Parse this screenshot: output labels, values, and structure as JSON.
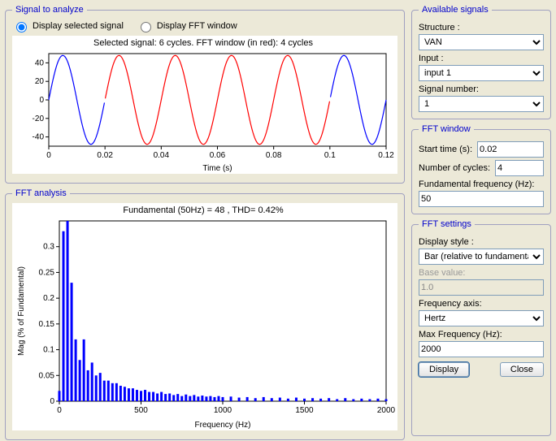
{
  "signal_panel": {
    "legend": "Signal to analyze",
    "radio_selected_label": "Display selected signal",
    "radio_fft_label": "Display FFT window",
    "radio_value": "selected",
    "chart": {
      "type": "line",
      "title": "Selected signal: 6 cycles. FFT window (in red): 4 cycles",
      "xlabel": "Time (s)",
      "xlim": [
        0,
        0.12
      ],
      "xticks": [
        0,
        0.02,
        0.04,
        0.06,
        0.08,
        0.1,
        0.12
      ],
      "ylim": [
        -50,
        50
      ],
      "yticks": [
        -40,
        -20,
        0,
        20,
        40
      ],
      "amplitude": 48,
      "frequency": 50,
      "fft_window": [
        0.02,
        0.1
      ],
      "line_color": "#0000ff",
      "fft_color": "#ff0000",
      "background_color": "#ffffff",
      "axis_color": "#000000",
      "tick_fontsize": 10,
      "label_fontsize": 10,
      "title_fontsize": 11
    }
  },
  "fft_panel": {
    "legend": "FFT analysis",
    "chart": {
      "type": "bar",
      "title": "Fundamental (50Hz) = 48 , THD= 0.42%",
      "xlabel": "Frequency (Hz)",
      "ylabel": "Mag (% of Fundamental)",
      "xlim": [
        0,
        2000
      ],
      "xticks": [
        0,
        500,
        1000,
        1500,
        2000
      ],
      "ylim": [
        0,
        0.35
      ],
      "yticks": [
        0,
        0.05,
        0.1,
        0.15,
        0.2,
        0.25,
        0.3
      ],
      "bar_color": "#0000ff",
      "background_color": "#ffffff",
      "axis_color": "#000000",
      "tick_fontsize": 10,
      "label_fontsize": 10,
      "title_fontsize": 11,
      "bars": [
        {
          "f": 0,
          "mag": 0.02
        },
        {
          "f": 25,
          "mag": 0.33
        },
        {
          "f": 50,
          "mag": 0.35
        },
        {
          "f": 75,
          "mag": 0.23
        },
        {
          "f": 100,
          "mag": 0.12
        },
        {
          "f": 125,
          "mag": 0.08
        },
        {
          "f": 150,
          "mag": 0.12
        },
        {
          "f": 175,
          "mag": 0.06
        },
        {
          "f": 200,
          "mag": 0.075
        },
        {
          "f": 225,
          "mag": 0.05
        },
        {
          "f": 250,
          "mag": 0.055
        },
        {
          "f": 275,
          "mag": 0.04
        },
        {
          "f": 300,
          "mag": 0.04
        },
        {
          "f": 325,
          "mag": 0.035
        },
        {
          "f": 350,
          "mag": 0.035
        },
        {
          "f": 375,
          "mag": 0.03
        },
        {
          "f": 400,
          "mag": 0.028
        },
        {
          "f": 425,
          "mag": 0.025
        },
        {
          "f": 450,
          "mag": 0.025
        },
        {
          "f": 475,
          "mag": 0.022
        },
        {
          "f": 500,
          "mag": 0.02
        },
        {
          "f": 525,
          "mag": 0.022
        },
        {
          "f": 550,
          "mag": 0.018
        },
        {
          "f": 575,
          "mag": 0.018
        },
        {
          "f": 600,
          "mag": 0.015
        },
        {
          "f": 625,
          "mag": 0.018
        },
        {
          "f": 650,
          "mag": 0.014
        },
        {
          "f": 675,
          "mag": 0.015
        },
        {
          "f": 700,
          "mag": 0.012
        },
        {
          "f": 725,
          "mag": 0.014
        },
        {
          "f": 750,
          "mag": 0.01
        },
        {
          "f": 775,
          "mag": 0.013
        },
        {
          "f": 800,
          "mag": 0.01
        },
        {
          "f": 825,
          "mag": 0.012
        },
        {
          "f": 850,
          "mag": 0.009
        },
        {
          "f": 875,
          "mag": 0.011
        },
        {
          "f": 900,
          "mag": 0.009
        },
        {
          "f": 925,
          "mag": 0.01
        },
        {
          "f": 950,
          "mag": 0.008
        },
        {
          "f": 975,
          "mag": 0.01
        },
        {
          "f": 1000,
          "mag": 0.008
        },
        {
          "f": 1050,
          "mag": 0.009
        },
        {
          "f": 1100,
          "mag": 0.007
        },
        {
          "f": 1150,
          "mag": 0.008
        },
        {
          "f": 1200,
          "mag": 0.006
        },
        {
          "f": 1250,
          "mag": 0.008
        },
        {
          "f": 1300,
          "mag": 0.006
        },
        {
          "f": 1350,
          "mag": 0.007
        },
        {
          "f": 1400,
          "mag": 0.005
        },
        {
          "f": 1450,
          "mag": 0.007
        },
        {
          "f": 1500,
          "mag": 0.005
        },
        {
          "f": 1550,
          "mag": 0.006
        },
        {
          "f": 1600,
          "mag": 0.005
        },
        {
          "f": 1650,
          "mag": 0.006
        },
        {
          "f": 1700,
          "mag": 0.004
        },
        {
          "f": 1750,
          "mag": 0.006
        },
        {
          "f": 1800,
          "mag": 0.004
        },
        {
          "f": 1850,
          "mag": 0.005
        },
        {
          "f": 1900,
          "mag": 0.004
        },
        {
          "f": 1950,
          "mag": 0.005
        },
        {
          "f": 2000,
          "mag": 0.004
        }
      ]
    }
  },
  "available": {
    "legend": "Available signals",
    "structure_label": "Structure :",
    "structure_value": "VAN",
    "input_label": "Input :",
    "input_value": "input 1",
    "signal_number_label": "Signal number:",
    "signal_number_value": "1"
  },
  "fft_window": {
    "legend": "FFT window",
    "start_label": "Start time (s):",
    "start_value": "0.02",
    "ncycles_label": "Number of cycles:",
    "ncycles_value": "4",
    "fundfreq_label": "Fundamental frequency (Hz):",
    "fundfreq_value": "50"
  },
  "fft_settings": {
    "legend": "FFT settings",
    "display_style_label": "Display style :",
    "display_style_value": "Bar (relative to fundamental)",
    "base_value_label": "Base value:",
    "base_value_value": "1.0",
    "freq_axis_label": "Frequency axis:",
    "freq_axis_value": "Hertz",
    "max_freq_label": "Max Frequency (Hz):",
    "max_freq_value": "2000",
    "display_btn": "Display",
    "close_btn": "Close"
  }
}
